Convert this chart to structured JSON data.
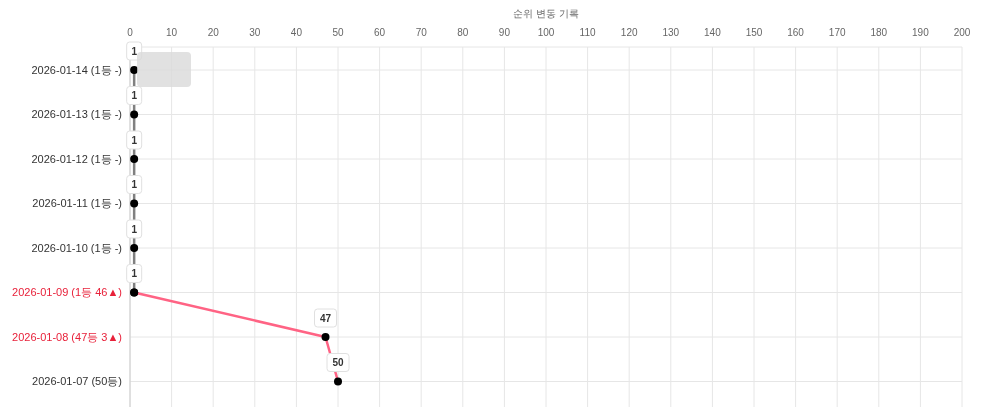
{
  "chart_data": {
    "type": "line",
    "orientation": "horizontal",
    "xlabel": "순위 변동 기록",
    "categories": [
      "2026-01-14 (1등 -)",
      "2026-01-13 (1등 -)",
      "2026-01-12 (1등 -)",
      "2026-01-11 (1등 -)",
      "2026-01-10 (1등 -)",
      "2026-01-09 (1등 46▲)",
      "2026-01-08 (47등 3▲)",
      "2026-01-07 (50등)"
    ],
    "series": [
      {
        "color": "#808080",
        "values": [
          1,
          1,
          1,
          1,
          1,
          1,
          null,
          null
        ],
        "value_labels": [
          "1",
          "1",
          "1",
          "1",
          "1",
          "1",
          null,
          null
        ]
      },
      {
        "color": "#ff6384",
        "values": [
          null,
          null,
          null,
          null,
          null,
          1,
          47,
          50
        ],
        "value_labels": [
          null,
          null,
          null,
          null,
          null,
          null,
          "47",
          "50"
        ]
      }
    ],
    "xlim": [
      0,
      200
    ],
    "xticks": [
      0,
      10,
      20,
      30,
      40,
      50,
      60,
      70,
      80,
      90,
      100,
      110,
      120,
      130,
      140,
      150,
      160,
      170,
      180,
      190,
      200
    ],
    "grid": true,
    "marker": "circle"
  }
}
